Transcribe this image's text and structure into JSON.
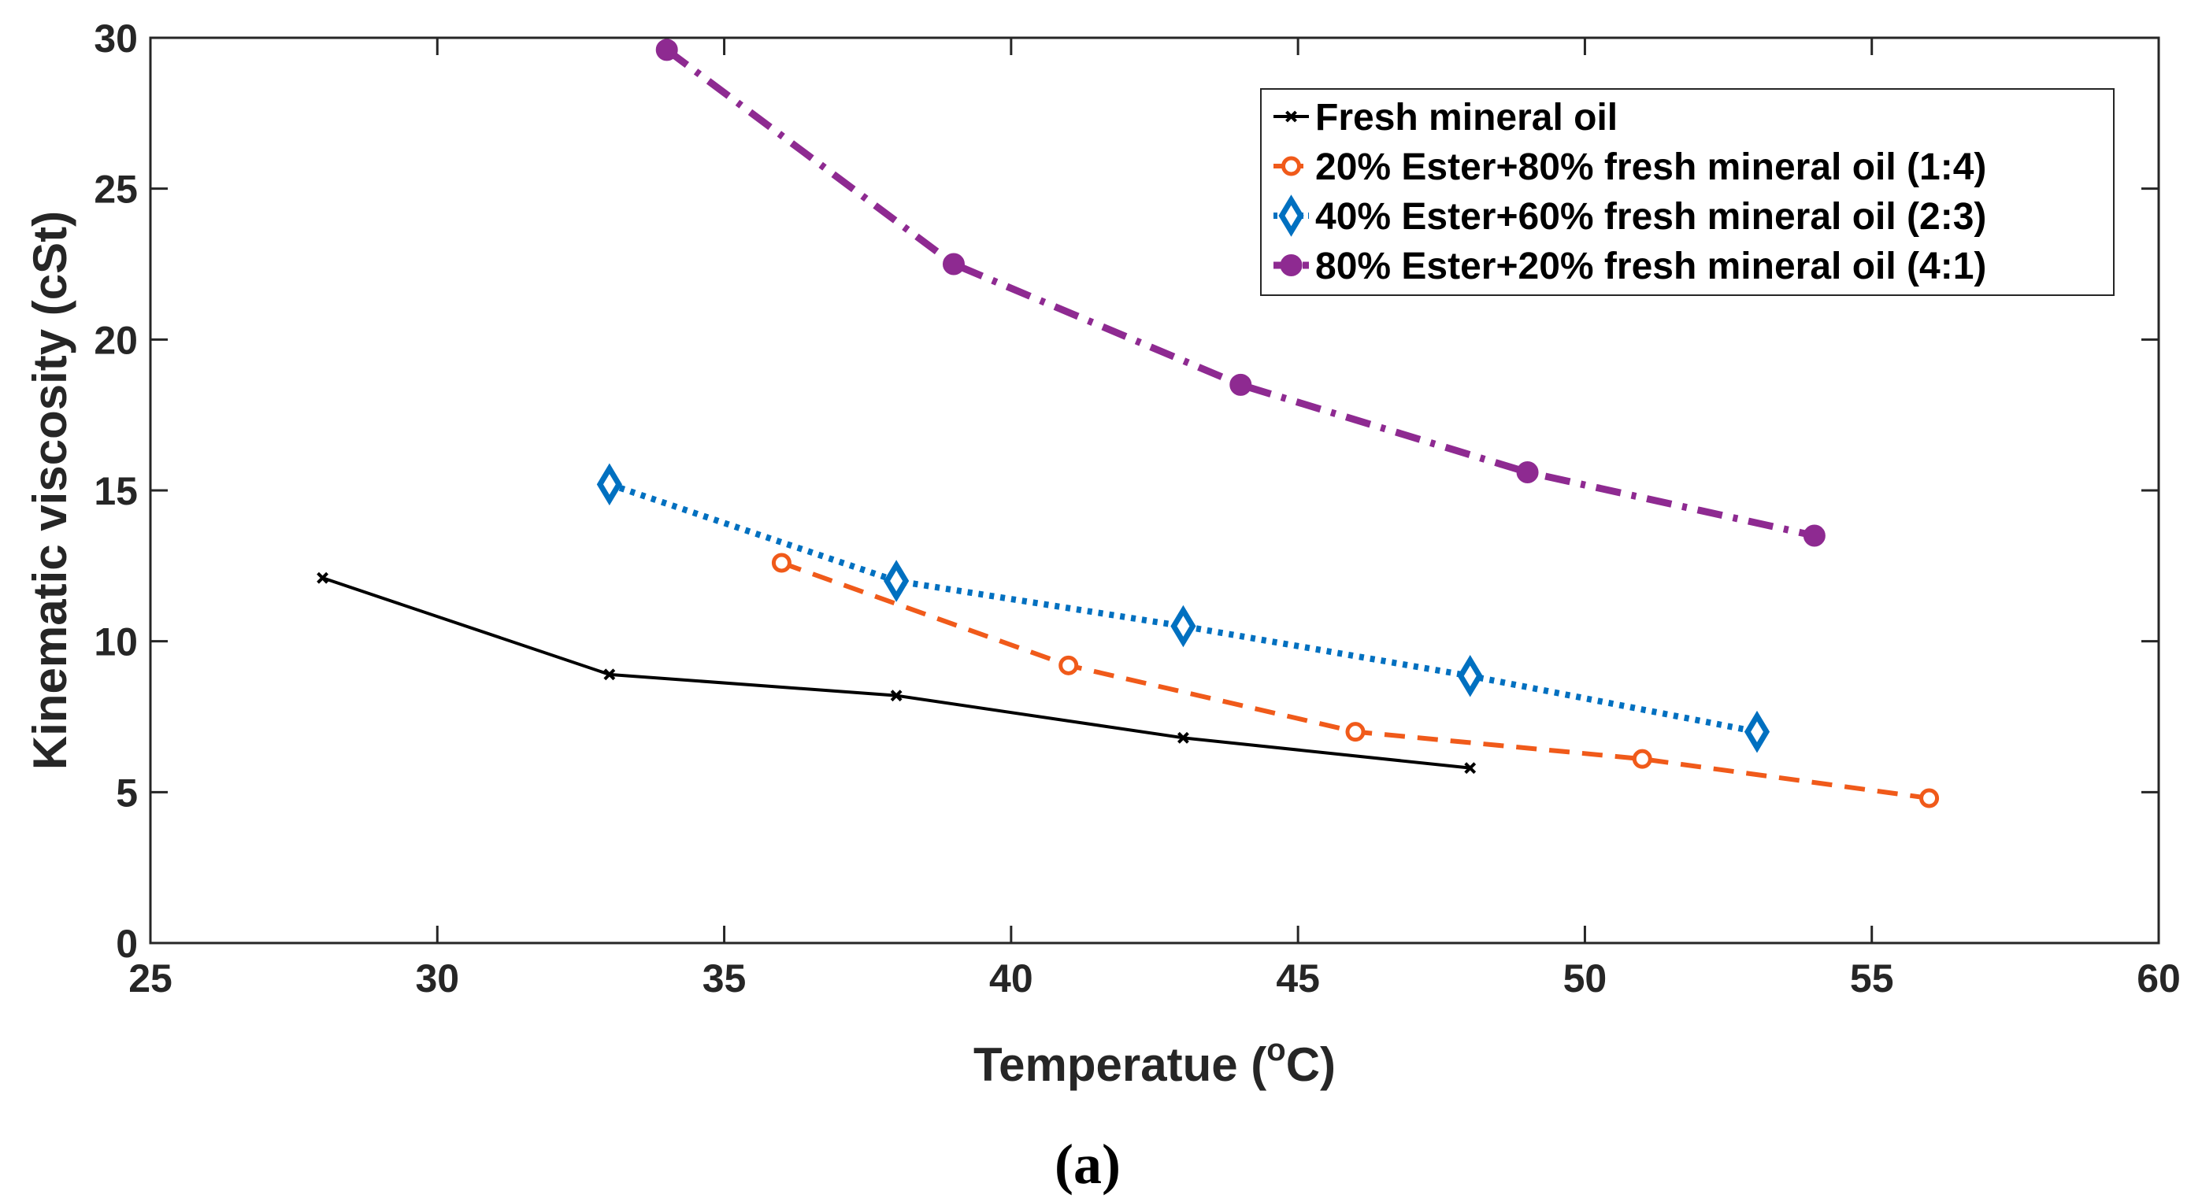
{
  "chart_data": {
    "type": "line",
    "title": "",
    "xlabel": "Temperatue (",
    "xlabel_sup": "o",
    "xlabel_end": "C)",
    "ylabel": "Kinematic viscosity (cSt)",
    "xlim": [
      25,
      60
    ],
    "ylim": [
      0,
      30
    ],
    "xticks": [
      25,
      30,
      35,
      40,
      45,
      50,
      55,
      60
    ],
    "yticks": [
      0,
      5,
      10,
      15,
      20,
      25,
      30
    ],
    "grid": false,
    "legend_position": "top-right",
    "caption": "(a)",
    "series": [
      {
        "name": "Fresh mineral oil",
        "color": "#000000",
        "line_style": "solid",
        "marker": "x",
        "x": [
          28,
          33,
          38,
          43,
          48
        ],
        "y": [
          12.1,
          8.9,
          8.2,
          6.8,
          5.8
        ]
      },
      {
        "name": "20% Ester+80% fresh mineral oil (1:4)",
        "color": "#F05A1A",
        "line_style": "dashed",
        "marker": "circle-open",
        "x": [
          36,
          41,
          46,
          51,
          56
        ],
        "y": [
          12.6,
          9.2,
          7.0,
          6.1,
          4.8
        ]
      },
      {
        "name": "40% Ester+60% fresh mineral oil (2:3)",
        "color": "#0070C0",
        "line_style": "dotted",
        "marker": "diamond",
        "x": [
          33,
          38,
          43,
          48,
          53
        ],
        "y": [
          15.2,
          12.0,
          10.5,
          8.85,
          7.0
        ]
      },
      {
        "name": "80% Ester+20% fresh mineral oil (4:1)",
        "color": "#8E2A91",
        "line_style": "dashdot",
        "marker": "circle-filled",
        "x": [
          34,
          39,
          44,
          49,
          54
        ],
        "y": [
          29.6,
          22.5,
          18.5,
          15.6,
          13.5
        ]
      }
    ]
  }
}
